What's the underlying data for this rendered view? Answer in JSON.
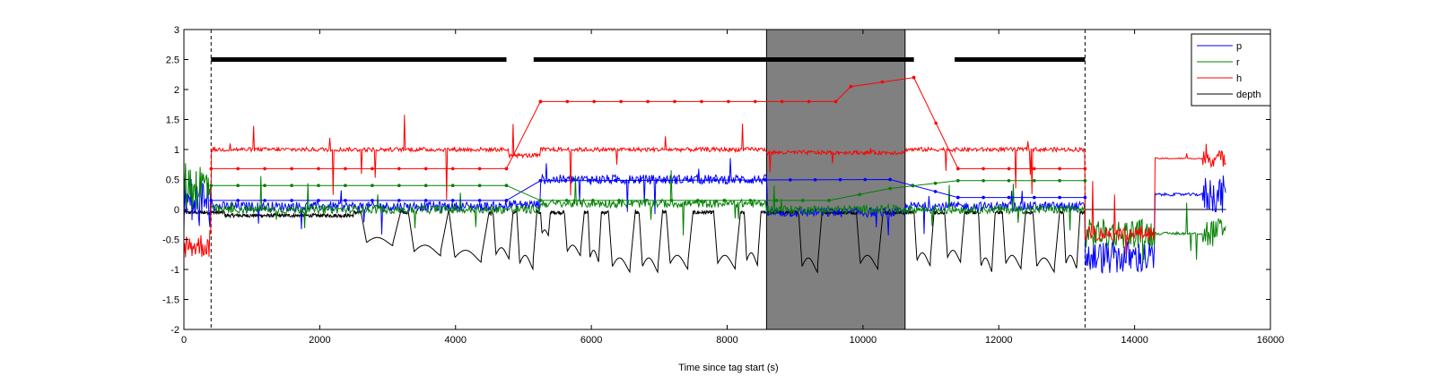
{
  "chart_data": {
    "type": "line",
    "title": "",
    "xlabel": "Time since tag start (s)",
    "ylabel": "",
    "xlim": [
      0,
      16000
    ],
    "ylim": [
      -2,
      3
    ],
    "x_ticks": [
      0,
      2000,
      4000,
      6000,
      8000,
      10000,
      12000,
      14000,
      16000
    ],
    "x_tick_labels": [
      "0",
      "2000",
      "4000",
      "6000",
      "8000",
      "10000",
      "12000",
      "14000",
      "16000"
    ],
    "y_ticks": [
      -2,
      -1.5,
      -1,
      -0.5,
      0,
      0.5,
      1,
      1.5,
      2,
      2.5,
      3
    ],
    "y_tick_labels": [
      "-2",
      "-1.5",
      "-1",
      "-0.5",
      "0",
      "0.5",
      "1",
      "1.5",
      "2",
      "2.5",
      "3"
    ],
    "grid": false,
    "legend_position": "top-right",
    "shaded_interval": {
      "x": [
        8580,
        10620
      ],
      "color": "#808080"
    },
    "vertical_dashed_lines": [
      400,
      13270
    ],
    "black_bars": {
      "y": 2.5,
      "segments": [
        [
          400,
          4750
        ],
        [
          5150,
          10750
        ],
        [
          11350,
          13270
        ]
      ]
    },
    "series": [
      {
        "name": "p",
        "color": "#0000ff",
        "role": "pitch",
        "levels": [
          [
            0,
            0.1
          ],
          [
            400,
            0.05
          ],
          [
            4780,
            0.08
          ],
          [
            5250,
            0.5
          ],
          [
            8580,
            -0.05
          ],
          [
            10620,
            0.05
          ],
          [
            13270,
            -0.8
          ],
          [
            14300,
            0.25
          ],
          [
            15350,
            0.3
          ]
        ],
        "interp_points": [
          [
            400,
            0.15
          ],
          [
            4750,
            0.15
          ],
          [
            5250,
            0.48
          ],
          [
            10400,
            0.5
          ],
          [
            11400,
            0.2
          ],
          [
            13270,
            0.2
          ]
        ]
      },
      {
        "name": "r",
        "color": "#008000",
        "role": "roll",
        "levels": [
          [
            0,
            0.4
          ],
          [
            400,
            0.0
          ],
          [
            4780,
            0.0
          ],
          [
            5250,
            0.1
          ],
          [
            8580,
            0.0
          ],
          [
            10620,
            0.0
          ],
          [
            13270,
            -0.4
          ],
          [
            14300,
            -0.4
          ],
          [
            15350,
            -0.4
          ]
        ],
        "interp_points": [
          [
            400,
            0.4
          ],
          [
            4750,
            0.4
          ],
          [
            5250,
            0.15
          ],
          [
            9500,
            0.15
          ],
          [
            10400,
            0.35
          ],
          [
            11400,
            0.48
          ],
          [
            13270,
            0.48
          ]
        ]
      },
      {
        "name": "h",
        "color": "#ff0000",
        "role": "heading",
        "levels": [
          [
            0,
            -0.6
          ],
          [
            400,
            1.0
          ],
          [
            4780,
            0.9
          ],
          [
            5250,
            1.0
          ],
          [
            8580,
            0.95
          ],
          [
            10620,
            1.0
          ],
          [
            13270,
            -0.4
          ],
          [
            14300,
            0.85
          ],
          [
            15350,
            0.85
          ]
        ],
        "interp_points": [
          [
            400,
            0.68
          ],
          [
            4750,
            0.68
          ],
          [
            5250,
            1.8
          ],
          [
            9600,
            1.8
          ],
          [
            9820,
            2.05
          ],
          [
            10750,
            2.2
          ],
          [
            11400,
            0.68
          ],
          [
            13270,
            0.68
          ]
        ]
      },
      {
        "name": "depth",
        "color": "#000000",
        "role": "depth",
        "levels": [
          [
            0,
            0.0
          ],
          [
            13270,
            0.0
          ],
          [
            15350,
            0.0
          ]
        ],
        "dives": [
          {
            "start": 2600,
            "end": 3200,
            "depth": -0.55
          },
          {
            "start": 3300,
            "end": 3900,
            "depth": -0.7
          },
          {
            "start": 3900,
            "end": 4500,
            "depth": -0.8
          },
          {
            "start": 4550,
            "end": 4850,
            "depth": -0.75
          },
          {
            "start": 4900,
            "end": 5200,
            "depth": -0.9
          },
          {
            "start": 5250,
            "end": 5400,
            "depth": -0.4
          },
          {
            "start": 5600,
            "end": 5900,
            "depth": -0.7
          },
          {
            "start": 5950,
            "end": 6150,
            "depth": -0.8
          },
          {
            "start": 6250,
            "end": 6650,
            "depth": -0.95
          },
          {
            "start": 6700,
            "end": 7050,
            "depth": -0.95
          },
          {
            "start": 7100,
            "end": 7500,
            "depth": -0.9
          },
          {
            "start": 7800,
            "end": 8200,
            "depth": -0.9
          },
          {
            "start": 8250,
            "end": 8500,
            "depth": -0.85
          },
          {
            "start": 9050,
            "end": 9400,
            "depth": -0.95
          },
          {
            "start": 9900,
            "end": 10300,
            "depth": -0.9
          },
          {
            "start": 10750,
            "end": 11050,
            "depth": -0.85
          },
          {
            "start": 11200,
            "end": 11500,
            "depth": -0.8
          },
          {
            "start": 11700,
            "end": 11950,
            "depth": -0.95
          },
          {
            "start": 12050,
            "end": 12400,
            "depth": -0.9
          },
          {
            "start": 12500,
            "end": 12900,
            "depth": -0.95
          },
          {
            "start": 12950,
            "end": 13200,
            "depth": -0.9
          }
        ]
      }
    ]
  }
}
